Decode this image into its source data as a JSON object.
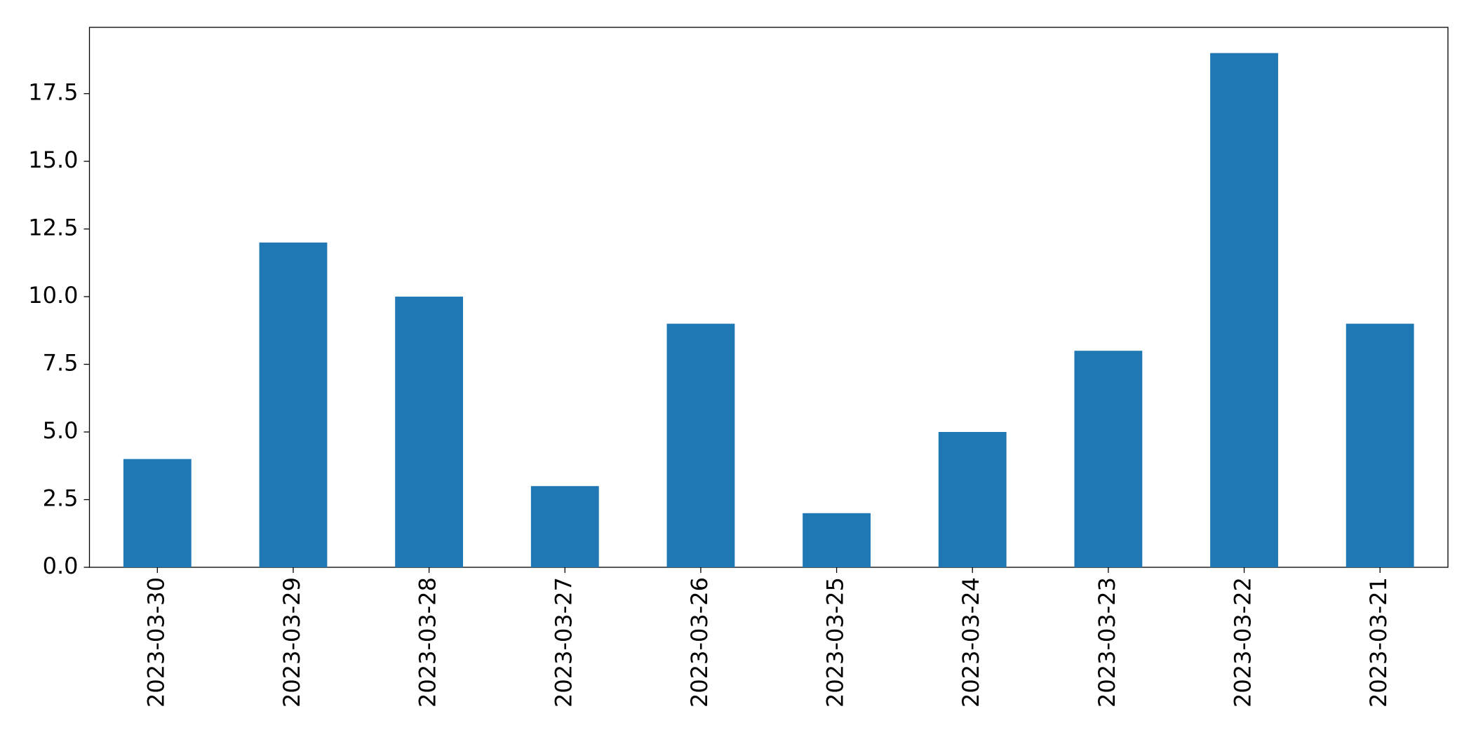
{
  "chart_data": {
    "type": "bar",
    "categories": [
      "2023-03-30",
      "2023-03-29",
      "2023-03-28",
      "2023-03-27",
      "2023-03-26",
      "2023-03-25",
      "2023-03-24",
      "2023-03-23",
      "2023-03-22",
      "2023-03-21"
    ],
    "values": [
      4,
      12,
      10,
      3,
      9,
      2,
      5,
      8,
      19,
      9
    ],
    "color": "#1f77b4",
    "ylim": [
      0,
      19.95
    ],
    "yticks": [
      {
        "value": 0,
        "label": "0.0"
      },
      {
        "value": 2.5,
        "label": "2.5"
      },
      {
        "value": 5,
        "label": "5.0"
      },
      {
        "value": 7.5,
        "label": "7.5"
      },
      {
        "value": 10,
        "label": "10.0"
      },
      {
        "value": 12.5,
        "label": "12.5"
      },
      {
        "value": 15,
        "label": "15.0"
      },
      {
        "value": 17.5,
        "label": "17.5"
      }
    ],
    "grid": false
  }
}
